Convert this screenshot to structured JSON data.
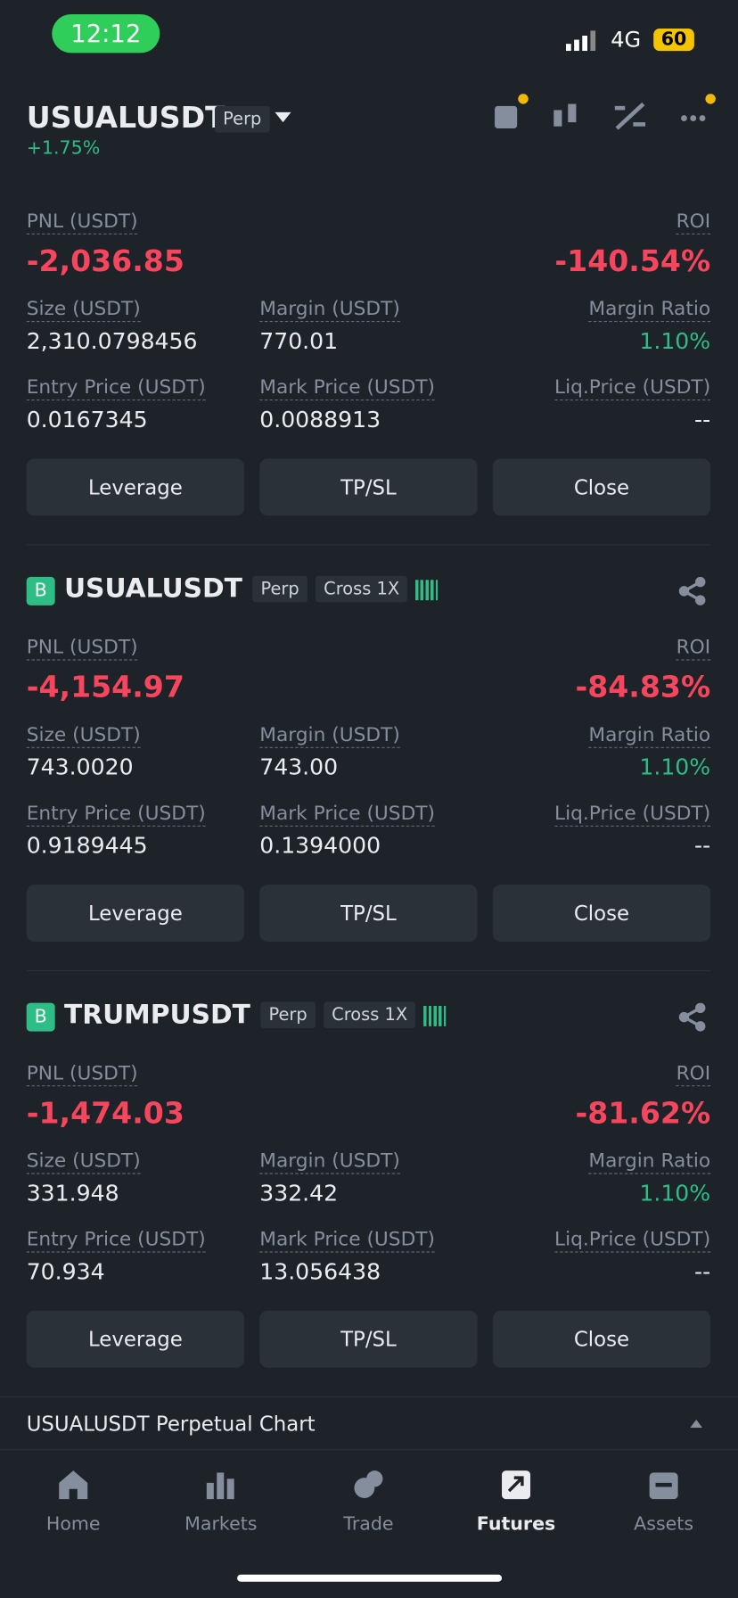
{
  "status": {
    "time": "12:12",
    "network": "4G",
    "battery": "60"
  },
  "header": {
    "symbol": "USUALUSDT",
    "tag": "Perp",
    "change": "+1.75%"
  },
  "positions": [
    {
      "fields": {
        "pnl": {
          "label": "PNL (USDT)",
          "value": "-2,036.85"
        },
        "roi": {
          "label": "ROI",
          "value": "-140.54%"
        },
        "size": {
          "label": "Size (USDT)",
          "value": "2,310.0798456"
        },
        "margin": {
          "label": "Margin (USDT)",
          "value": "770.01"
        },
        "ratio": {
          "label": "Margin Ratio",
          "value": "1.10%"
        },
        "entry": {
          "label": "Entry Price (USDT)",
          "value": "0.0167345"
        },
        "mark": {
          "label": "Mark Price (USDT)",
          "value": "0.0088913"
        },
        "liq": {
          "label": "Liq.Price (USDT)",
          "value": "--"
        }
      },
      "buttons": [
        "Leverage",
        "TP/SL",
        "Close"
      ]
    },
    {
      "side": "B",
      "symbol": "USUALUSDT",
      "tags": [
        "Perp",
        "Cross 1X"
      ],
      "fields": {
        "pnl": {
          "label": "PNL (USDT)",
          "value": "-4,154.97"
        },
        "roi": {
          "label": "ROI",
          "value": "-84.83%"
        },
        "size": {
          "label": "Size (USDT)",
          "value": "743.0020"
        },
        "margin": {
          "label": "Margin (USDT)",
          "value": "743.00"
        },
        "ratio": {
          "label": "Margin Ratio",
          "value": "1.10%"
        },
        "entry": {
          "label": "Entry Price (USDT)",
          "value": "0.9189445"
        },
        "mark": {
          "label": "Mark Price (USDT)",
          "value": "0.1394000"
        },
        "liq": {
          "label": "Liq.Price (USDT)",
          "value": "--"
        }
      },
      "buttons": [
        "Leverage",
        "TP/SL",
        "Close"
      ]
    },
    {
      "side": "B",
      "symbol": "TRUMPUSDT",
      "tags": [
        "Perp",
        "Cross 1X"
      ],
      "fields": {
        "pnl": {
          "label": "PNL (USDT)",
          "value": "-1,474.03"
        },
        "roi": {
          "label": "ROI",
          "value": "-81.62%"
        },
        "size": {
          "label": "Size (USDT)",
          "value": "331.948"
        },
        "margin": {
          "label": "Margin (USDT)",
          "value": "332.42"
        },
        "ratio": {
          "label": "Margin Ratio",
          "value": "1.10%"
        },
        "entry": {
          "label": "Entry Price (USDT)",
          "value": "70.934"
        },
        "mark": {
          "label": "Mark Price (USDT)",
          "value": "13.056438"
        },
        "liq": {
          "label": "Liq.Price (USDT)",
          "value": "--"
        }
      },
      "buttons": [
        "Leverage",
        "TP/SL",
        "Close"
      ]
    }
  ],
  "chart_bar": "USUALUSDT Perpetual  Chart",
  "nav": [
    "Home",
    "Markets",
    "Trade",
    "Futures",
    "Assets"
  ]
}
